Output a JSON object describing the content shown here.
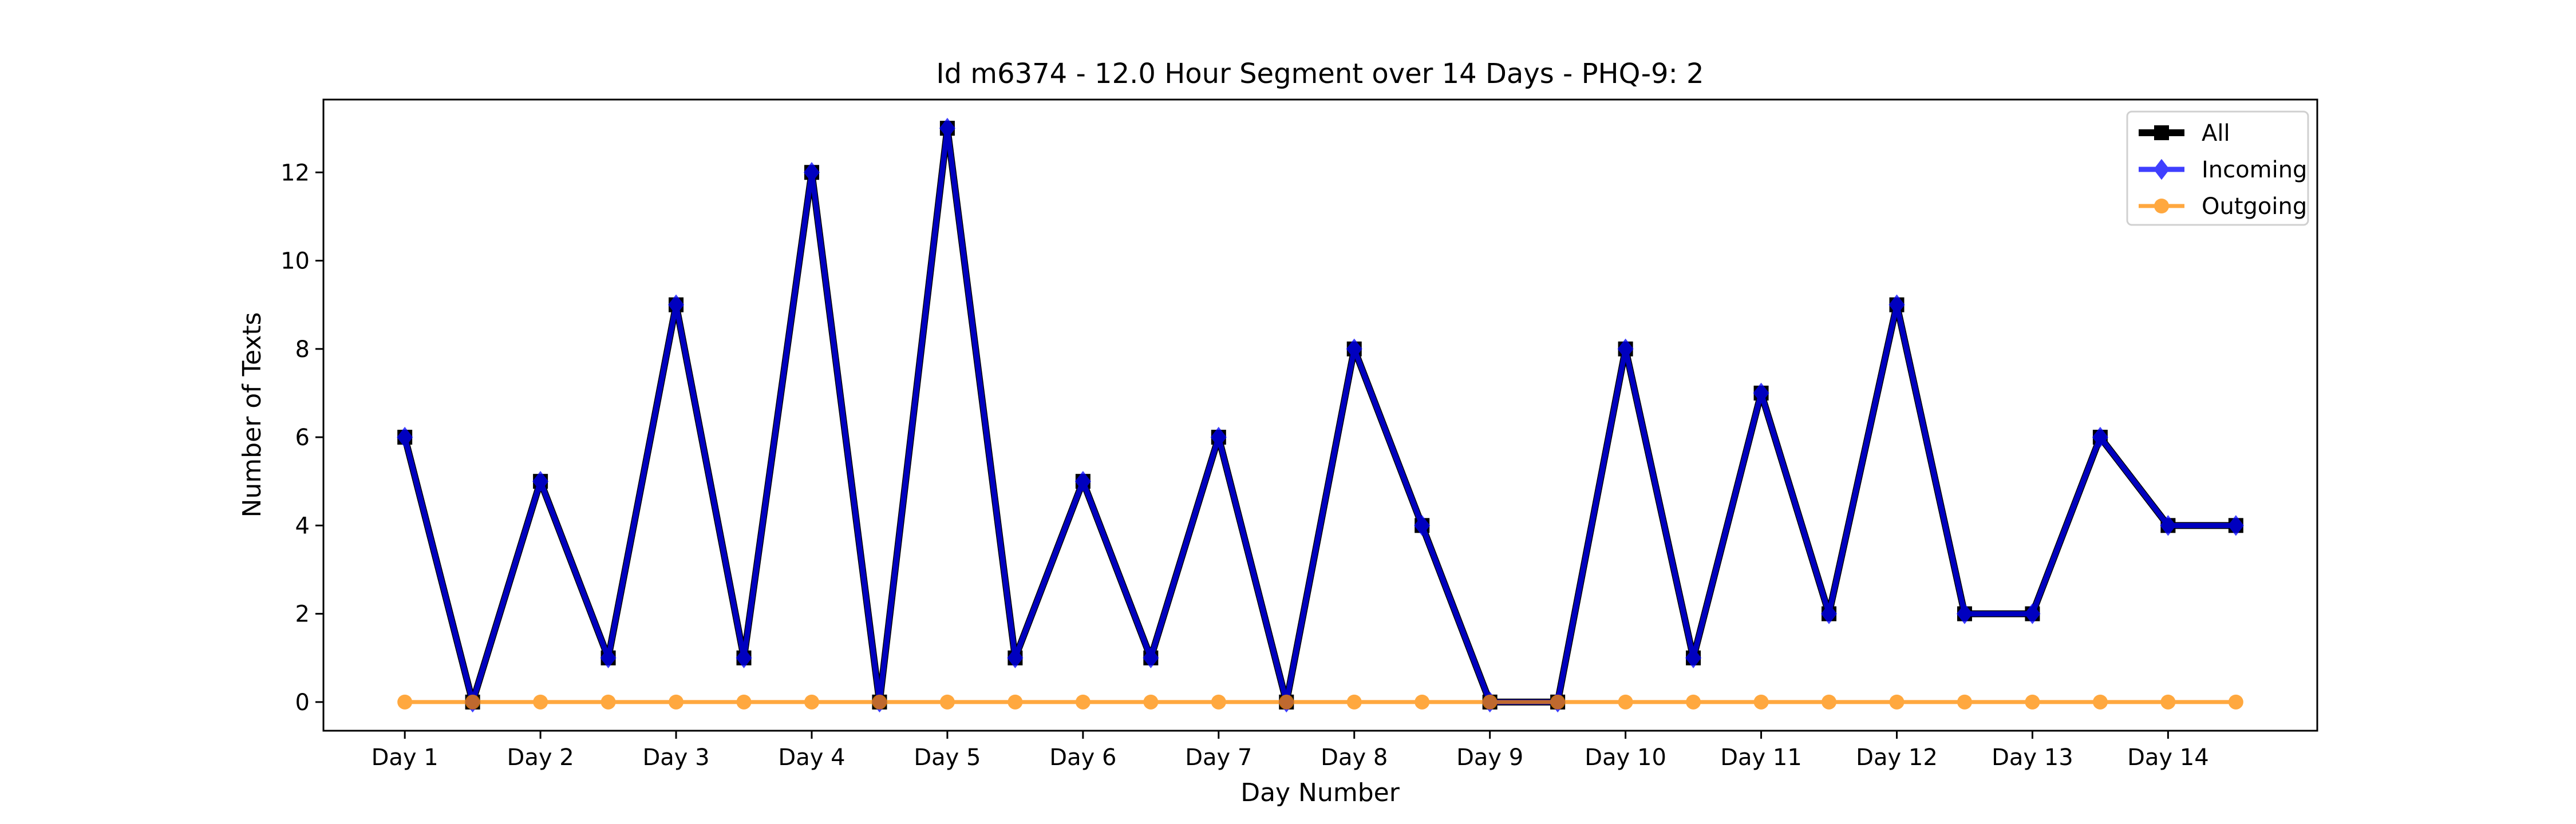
{
  "chart_data": {
    "type": "line",
    "title": "Id m6374 - 12.0 Hour Segment over 14 Days - PHQ-9: 2",
    "xlabel": "Day Number",
    "ylabel": "Number of Texts",
    "categories": [
      "Day 1",
      "Day 2",
      "Day 3",
      "Day 4",
      "Day 5",
      "Day 6",
      "Day 7",
      "Day 8",
      "Day 9",
      "Day 10",
      "Day 11",
      "Day 12",
      "Day 13",
      "Day 14"
    ],
    "x": [
      1,
      1.5,
      2,
      2.5,
      3,
      3.5,
      4,
      4.5,
      5,
      5.5,
      6,
      6.5,
      7,
      7.5,
      8,
      8.5,
      9,
      9.5,
      10,
      10.5,
      11,
      11.5,
      12,
      12.5,
      13,
      13.5,
      14,
      14.5
    ],
    "xlim": [
      0.4,
      15.1
    ],
    "ylim": [
      -0.65,
      13.65
    ],
    "yticks": [
      0,
      2,
      4,
      6,
      8,
      10,
      12
    ],
    "legend_position": "top-right",
    "series": [
      {
        "name": "All",
        "color": "#000000",
        "marker": "square",
        "values": [
          6,
          0,
          5,
          1,
          9,
          1,
          12,
          0,
          13,
          1,
          5,
          1,
          6,
          0,
          8,
          4,
          0,
          0,
          8,
          1,
          7,
          2,
          9,
          2,
          2,
          6,
          4,
          4
        ]
      },
      {
        "name": "Incoming",
        "color": "#0000ff",
        "marker": "diamond",
        "values": [
          6,
          0,
          5,
          1,
          9,
          1,
          12,
          0,
          13,
          1,
          5,
          1,
          6,
          0,
          8,
          4,
          0,
          0,
          8,
          1,
          7,
          2,
          9,
          2,
          2,
          6,
          4,
          4
        ]
      },
      {
        "name": "Outgoing",
        "color": "#ff8c00",
        "marker": "circle",
        "values": [
          0,
          0,
          0,
          0,
          0,
          0,
          0,
          0,
          0,
          0,
          0,
          0,
          0,
          0,
          0,
          0,
          0,
          0,
          0,
          0,
          0,
          0,
          0,
          0,
          0,
          0,
          0,
          0
        ]
      }
    ]
  }
}
